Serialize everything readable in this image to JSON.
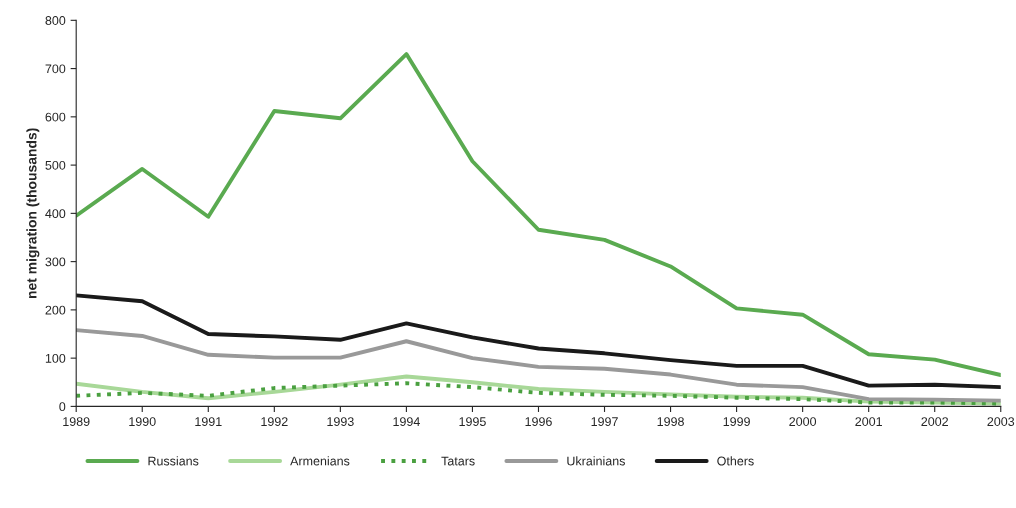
{
  "chart_data": {
    "type": "line",
    "ylabel": "net migration (thousands)",
    "x": [
      1989,
      1990,
      1991,
      1992,
      1993,
      1994,
      1995,
      1996,
      1997,
      1998,
      1999,
      2000,
      2001,
      2002,
      2003
    ],
    "xlim": [
      1989,
      2003
    ],
    "xticks": [
      1989,
      1990,
      1991,
      1992,
      1993,
      1994,
      1995,
      1996,
      1997,
      1998,
      1999,
      2000,
      2001,
      2002,
      2003
    ],
    "ylim": [
      0,
      800
    ],
    "yticks": [
      0,
      100,
      200,
      300,
      400,
      500,
      600,
      700,
      800
    ],
    "grid": false,
    "legend": "bottom",
    "marker": "none",
    "series": [
      {
        "name": "Russians",
        "color": "#5aaa50",
        "line_style": "solid",
        "values": [
          395,
          492,
          393,
          612,
          597,
          730,
          508,
          366,
          345,
          290,
          203,
          190,
          108,
          97,
          65
        ]
      },
      {
        "name": "Armenians",
        "color": "#a8d898",
        "line_style": "solid",
        "values": [
          47,
          30,
          17,
          30,
          45,
          62,
          50,
          36,
          30,
          25,
          20,
          18,
          10,
          8,
          6
        ]
      },
      {
        "name": "Tatars",
        "color": "#4aa040",
        "line_style": "dotted",
        "values": [
          22,
          28,
          22,
          38,
          43,
          48,
          40,
          28,
          24,
          22,
          18,
          15,
          8,
          8,
          6
        ]
      },
      {
        "name": "Ukrainians",
        "color": "#999999",
        "line_style": "solid",
        "values": [
          158,
          146,
          107,
          101,
          101,
          135,
          100,
          82,
          78,
          66,
          45,
          40,
          15,
          14,
          12
        ]
      },
      {
        "name": "Others",
        "color": "#1a1a1a",
        "line_style": "solid",
        "values": [
          230,
          218,
          150,
          145,
          138,
          172,
          143,
          120,
          110,
          96,
          84,
          84,
          43,
          45,
          40
        ]
      }
    ]
  }
}
